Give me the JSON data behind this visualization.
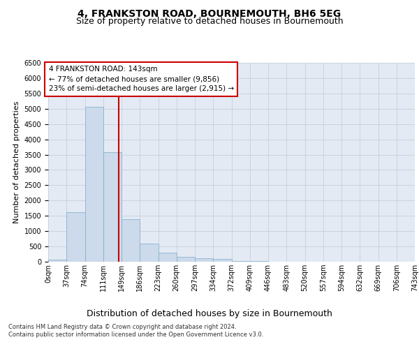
{
  "title": "4, FRANKSTON ROAD, BOURNEMOUTH, BH6 5EG",
  "subtitle": "Size of property relative to detached houses in Bournemouth",
  "xlabel": "Distribution of detached houses by size in Bournemouth",
  "ylabel": "Number of detached properties",
  "bar_values": [
    60,
    1620,
    5060,
    3580,
    1400,
    600,
    300,
    155,
    120,
    95,
    30,
    15,
    5,
    3,
    2,
    1,
    1,
    0,
    0,
    0
  ],
  "tick_labels": [
    "0sqm",
    "37sqm",
    "74sqm",
    "111sqm",
    "149sqm",
    "186sqm",
    "223sqm",
    "260sqm",
    "297sqm",
    "334sqm",
    "372sqm",
    "409sqm",
    "446sqm",
    "483sqm",
    "520sqm",
    "557sqm",
    "594sqm",
    "632sqm",
    "669sqm",
    "706sqm",
    "743sqm"
  ],
  "bar_color": "#ccdaeb",
  "bar_edge_color": "#7aaac8",
  "vline_color": "#cc0000",
  "vline_x": 3.865,
  "annotation_text": "4 FRANKSTON ROAD: 143sqm\n← 77% of detached houses are smaller (9,856)\n23% of semi-detached houses are larger (2,915) →",
  "annotation_box_color": "#cc0000",
  "ylim": [
    0,
    6500
  ],
  "yticks": [
    0,
    500,
    1000,
    1500,
    2000,
    2500,
    3000,
    3500,
    4000,
    4500,
    5000,
    5500,
    6000,
    6500
  ],
  "grid_color": "#c0cad8",
  "background_color": "#e4eaf4",
  "footer_line1": "Contains HM Land Registry data © Crown copyright and database right 2024.",
  "footer_line2": "Contains public sector information licensed under the Open Government Licence v3.0.",
  "title_fontsize": 10,
  "subtitle_fontsize": 9,
  "xlabel_fontsize": 9,
  "ylabel_fontsize": 8,
  "tick_fontsize": 7,
  "annotation_fontsize": 7.5,
  "footer_fontsize": 6
}
